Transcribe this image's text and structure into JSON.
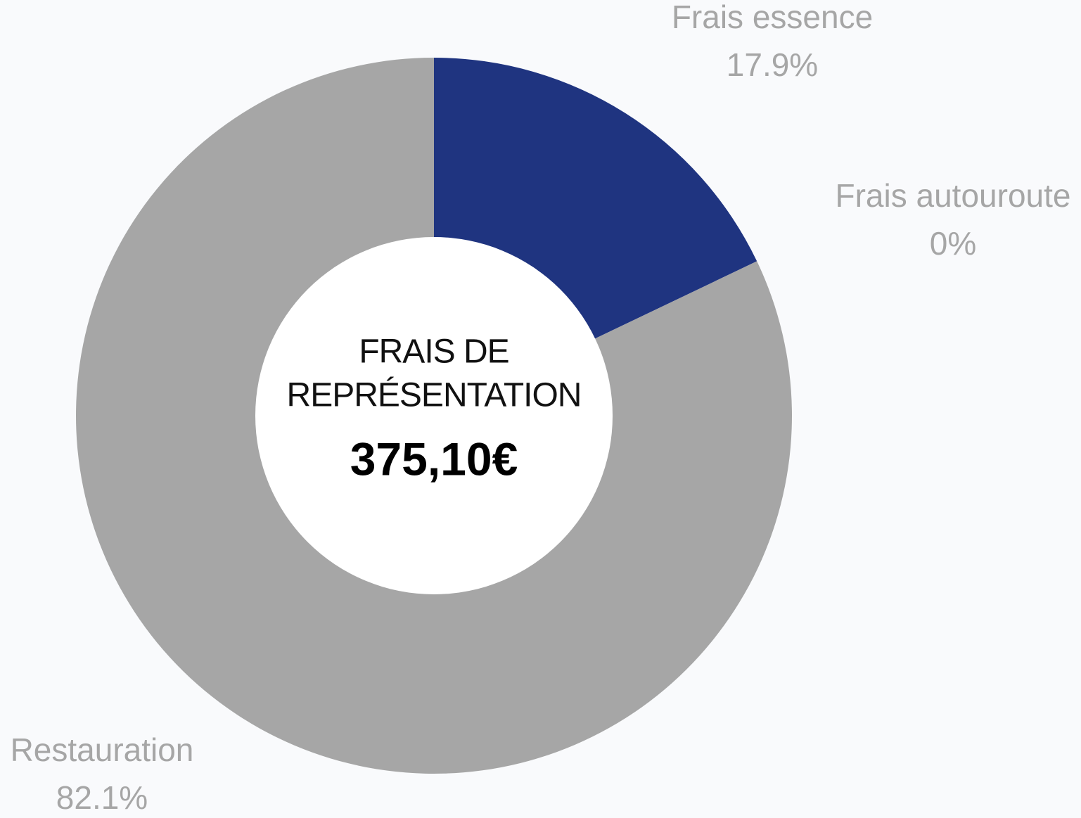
{
  "chart_data": {
    "type": "pie",
    "donut": true,
    "categories": [
      "Frais essence",
      "Frais autouroute",
      "Restauration"
    ],
    "values": [
      17.9,
      0,
      82.1
    ],
    "value_labels": [
      "17.9%",
      "0%",
      "82.1%"
    ],
    "colors": [
      "#1f3480",
      "#a6a6a6",
      "#a6a6a6"
    ],
    "center_title": [
      "FRAIS DE",
      "REPRÉSENTATION"
    ],
    "center_value": "375,10€"
  }
}
